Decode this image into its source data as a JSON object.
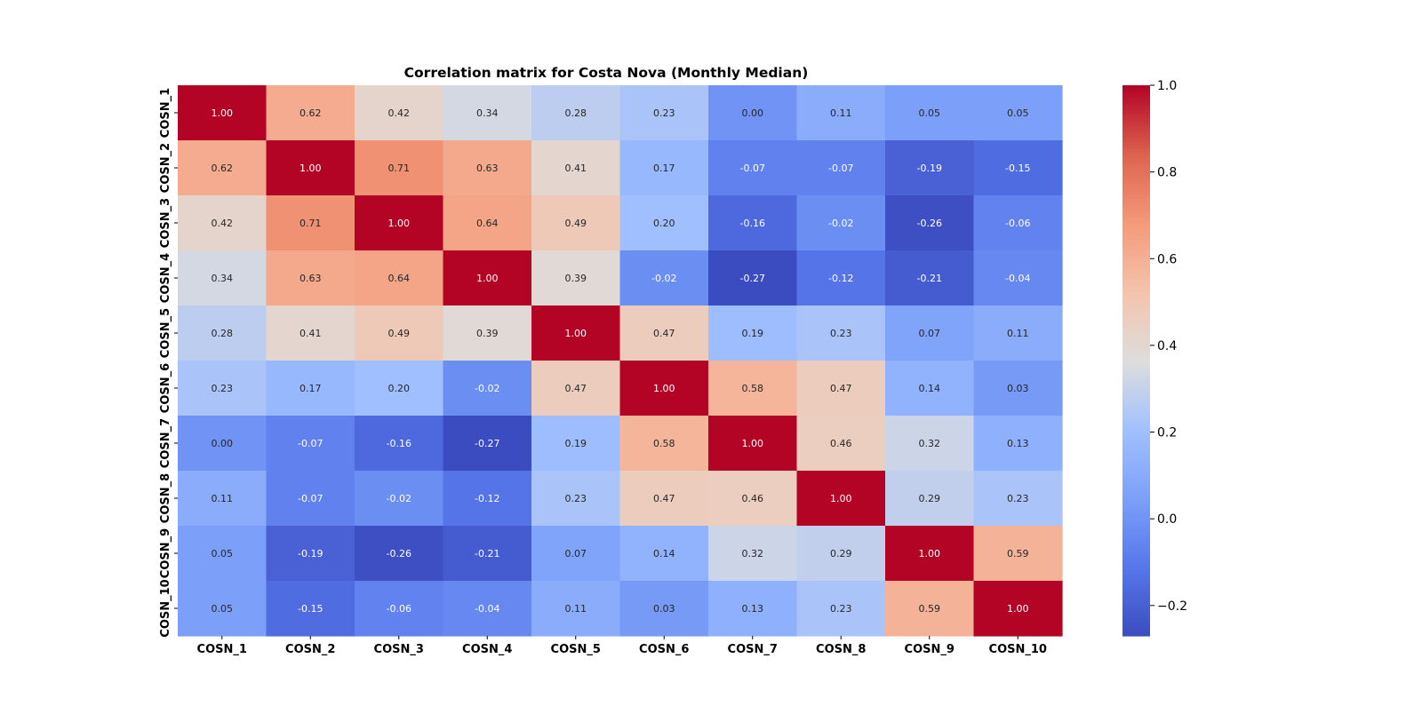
{
  "chart_data": {
    "type": "heatmap",
    "title": "Correlation matrix for Costa Nova (Monthly Median)",
    "x_labels": [
      "COSN_1",
      "COSN_2",
      "COSN_3",
      "COSN_4",
      "COSN_5",
      "COSN_6",
      "COSN_7",
      "COSN_8",
      "COSN_9",
      "COSN_10"
    ],
    "y_labels": [
      "COSN_1",
      "COSN_2",
      "COSN_3",
      "COSN_4",
      "COSN_5",
      "COSN_6",
      "COSN_7",
      "COSN_8",
      "COSN_9",
      "COSN_10"
    ],
    "values": [
      [
        1.0,
        0.62,
        0.42,
        0.34,
        0.28,
        0.23,
        0.0,
        0.11,
        0.05,
        0.05
      ],
      [
        0.62,
        1.0,
        0.71,
        0.63,
        0.41,
        0.17,
        -0.07,
        -0.07,
        -0.19,
        -0.15
      ],
      [
        0.42,
        0.71,
        1.0,
        0.64,
        0.49,
        0.2,
        -0.16,
        -0.02,
        -0.26,
        -0.06
      ],
      [
        0.34,
        0.63,
        0.64,
        1.0,
        0.39,
        -0.02,
        -0.27,
        -0.12,
        -0.21,
        -0.04
      ],
      [
        0.28,
        0.41,
        0.49,
        0.39,
        1.0,
        0.47,
        0.19,
        0.23,
        0.07,
        0.11
      ],
      [
        0.23,
        0.17,
        0.2,
        -0.02,
        0.47,
        1.0,
        0.58,
        0.47,
        0.14,
        0.03
      ],
      [
        0.0,
        -0.07,
        -0.16,
        -0.27,
        0.19,
        0.58,
        1.0,
        0.46,
        0.32,
        0.13
      ],
      [
        0.11,
        -0.07,
        -0.02,
        -0.12,
        0.23,
        0.47,
        0.46,
        1.0,
        0.29,
        0.23
      ],
      [
        0.05,
        -0.19,
        -0.26,
        -0.21,
        0.07,
        0.14,
        0.32,
        0.29,
        1.0,
        0.59
      ],
      [
        0.05,
        -0.15,
        -0.06,
        -0.04,
        0.11,
        0.03,
        0.13,
        0.23,
        0.59,
        1.0
      ]
    ],
    "value_format": "2 decimals",
    "colormap": "coolwarm",
    "vmin": -0.27,
    "vmax": 1.0,
    "colorbar": {
      "ticks": [
        1.0,
        0.8,
        0.6,
        0.4,
        0.2,
        0.0,
        -0.2
      ],
      "tick_labels": [
        "1.0",
        "0.8",
        "0.6",
        "0.4",
        "0.2",
        "0.0",
        "−0.2"
      ],
      "placement": "right"
    },
    "grid": false,
    "legend": "none"
  }
}
